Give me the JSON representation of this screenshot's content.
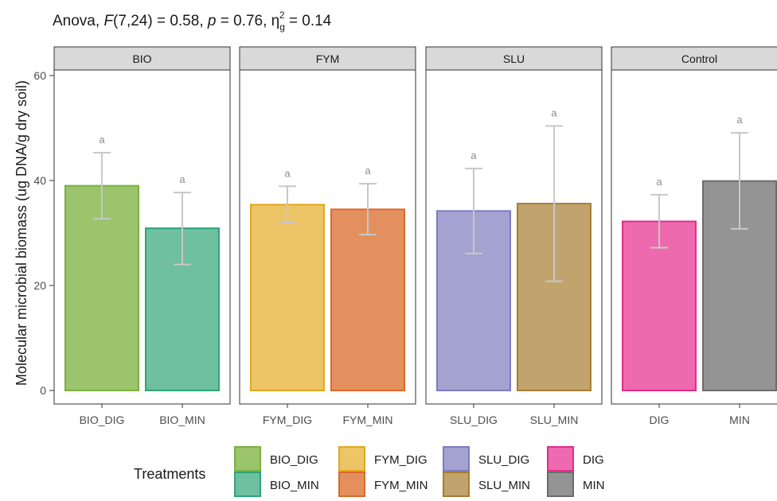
{
  "chart_data": {
    "type": "bar",
    "title": {
      "prefix": "Anova, ",
      "stat_name": "F",
      "stat_args": "(7,24) = 0.58, ",
      "p_name": "p",
      "p_value": " = 0.76, ",
      "eta_symbol": "η",
      "eta_sub": "g",
      "eta_sup": "2",
      "eta_value": " = 0.14"
    },
    "ylabel": "Molecular microbial biomass (ug DNA/g dry soil)",
    "ylim": [
      0,
      62
    ],
    "yticks": [
      0,
      20,
      40,
      60
    ],
    "grid": false,
    "legend": {
      "title": "Treatments",
      "position": "bottom",
      "items": [
        {
          "label": "BIO_DIG",
          "color": "#9BC46C",
          "stroke": "#7AB03F"
        },
        {
          "label": "BIO_MIN",
          "color": "#6FBFA1",
          "stroke": "#2FA37A"
        },
        {
          "label": "FYM_DIG",
          "color": "#EDC466",
          "stroke": "#E0A91F"
        },
        {
          "label": "FYM_MIN",
          "color": "#E4905E",
          "stroke": "#D86A2A"
        },
        {
          "label": "SLU_DIG",
          "color": "#A4A2D0",
          "stroke": "#7D7BBF"
        },
        {
          "label": "SLU_MIN",
          "color": "#C1A36E",
          "stroke": "#A57E33"
        },
        {
          "label": "DIG",
          "color": "#EE6AAE",
          "stroke": "#E32B8A"
        },
        {
          "label": "MIN",
          "color": "#949494",
          "stroke": "#6B6B6B"
        }
      ]
    },
    "panels": [
      {
        "strip": "BIO",
        "bars": [
          {
            "category": "BIO_DIG",
            "value": 39.0,
            "err_low": 32.7,
            "err_high": 45.3,
            "label": "a",
            "fill": "#9BC46C",
            "stroke": "#7AB03F"
          },
          {
            "category": "BIO_MIN",
            "value": 30.9,
            "err_low": 24.0,
            "err_high": 37.7,
            "label": "a",
            "fill": "#6FBFA1",
            "stroke": "#2FA37A"
          }
        ]
      },
      {
        "strip": "FYM",
        "bars": [
          {
            "category": "FYM_DIG",
            "value": 35.4,
            "err_low": 32.0,
            "err_high": 38.9,
            "label": "a",
            "fill": "#EDC466",
            "stroke": "#E0A91F"
          },
          {
            "category": "FYM_MIN",
            "value": 34.5,
            "err_low": 29.7,
            "err_high": 39.4,
            "label": "a",
            "fill": "#E4905E",
            "stroke": "#D86A2A"
          }
        ]
      },
      {
        "strip": "SLU",
        "bars": [
          {
            "category": "SLU_DIG",
            "value": 34.2,
            "err_low": 26.1,
            "err_high": 42.3,
            "label": "a",
            "fill": "#A4A2D0",
            "stroke": "#7D7BBF"
          },
          {
            "category": "SLU_MIN",
            "value": 35.6,
            "err_low": 20.8,
            "err_high": 50.4,
            "label": "a",
            "fill": "#C1A36E",
            "stroke": "#A57E33"
          }
        ]
      },
      {
        "strip": "Control",
        "bars": [
          {
            "category": "DIG",
            "value": 32.2,
            "err_low": 27.2,
            "err_high": 37.3,
            "label": "a",
            "fill": "#EE6AAE",
            "stroke": "#E32B8A"
          },
          {
            "category": "MIN",
            "value": 39.9,
            "err_low": 30.8,
            "err_high": 49.1,
            "label": "a",
            "fill": "#949494",
            "stroke": "#6B6B6B"
          }
        ]
      }
    ]
  }
}
